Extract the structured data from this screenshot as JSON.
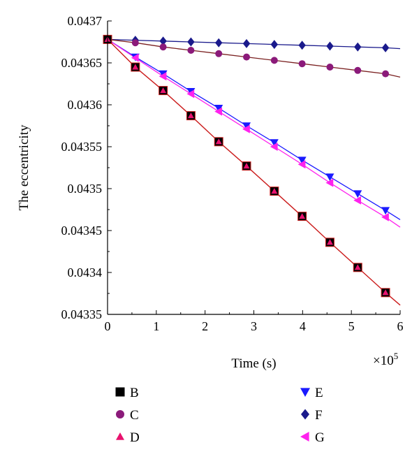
{
  "chart_data": {
    "type": "line",
    "xlabel": "Time (s)",
    "ylabel": "The eccentricity",
    "x_multiplier": "×10",
    "x_multiplier_exp": "5",
    "xlim": [
      0,
      6
    ],
    "ylim": [
      0.04335,
      0.0437
    ],
    "x_ticks": [
      "0",
      "1",
      "2",
      "3",
      "4",
      "5",
      "6"
    ],
    "y_ticks": [
      "0.04335",
      "0.0434",
      "0.04345",
      "0.0435",
      "0.04355",
      "0.0436",
      "0.04365",
      "0.0437"
    ],
    "grid": false,
    "legend_position": "bottom",
    "series": [
      {
        "name": "B",
        "marker": "square",
        "color": "#000000",
        "line_color": "#cc2020",
        "x": [
          0,
          0.57,
          1.14,
          1.71,
          2.28,
          2.85,
          3.42,
          3.99,
          4.56,
          5.13,
          5.7
        ],
        "y": [
          0.043678,
          0.043645,
          0.043617,
          0.043587,
          0.043556,
          0.043527,
          0.043497,
          0.043467,
          0.043436,
          0.043406,
          0.043376
        ],
        "line_end": [
          6.0,
          0.043361
        ]
      },
      {
        "name": "C",
        "marker": "circle",
        "color": "#8b1a7a",
        "line_color": "#7a2020",
        "x": [
          0,
          0.57,
          1.14,
          1.71,
          2.28,
          2.85,
          3.42,
          3.99,
          4.56,
          5.13,
          5.7
        ],
        "y": [
          0.043678,
          0.043674,
          0.043669,
          0.043665,
          0.043661,
          0.043657,
          0.043653,
          0.043649,
          0.043645,
          0.043641,
          0.043637
        ],
        "line_end": [
          6.0,
          0.043633
        ]
      },
      {
        "name": "D",
        "marker": "triangle-up",
        "color": "#e8126e",
        "line_color": "#cc2020",
        "x": [
          0,
          0.57,
          1.14,
          1.71,
          2.28,
          2.85,
          3.42,
          3.99,
          4.56,
          5.13,
          5.7
        ],
        "y": [
          0.043678,
          0.043645,
          0.043617,
          0.043587,
          0.043556,
          0.043527,
          0.043497,
          0.043467,
          0.043436,
          0.043406,
          0.043376
        ],
        "line_end": [
          6.0,
          0.043361
        ]
      },
      {
        "name": "E",
        "marker": "triangle-down",
        "color": "#1a1aff",
        "line_color": "#1a1aff",
        "x": [
          0,
          0.57,
          1.14,
          1.71,
          2.28,
          2.85,
          3.42,
          3.99,
          4.56,
          5.13,
          5.7
        ],
        "y": [
          0.043678,
          0.043657,
          0.043637,
          0.043616,
          0.043596,
          0.043575,
          0.043555,
          0.043534,
          0.043514,
          0.043494,
          0.043474
        ],
        "line_end": [
          6.0,
          0.043463
        ]
      },
      {
        "name": "F",
        "marker": "diamond",
        "color": "#1a1a8c",
        "line_color": "#1a1a8c",
        "x": [
          0,
          0.57,
          1.14,
          1.71,
          2.28,
          2.85,
          3.42,
          3.99,
          4.56,
          5.13,
          5.7
        ],
        "y": [
          0.043678,
          0.043677,
          0.043676,
          0.043675,
          0.043674,
          0.043673,
          0.043672,
          0.043671,
          0.04367,
          0.043669,
          0.043668
        ],
        "line_end": [
          6.0,
          0.043667
        ]
      },
      {
        "name": "G",
        "marker": "triangle-left",
        "color": "#ff22ee",
        "line_color": "#ff22ee",
        "x": [
          0,
          0.57,
          1.14,
          1.71,
          2.28,
          2.85,
          3.42,
          3.99,
          4.56,
          5.13,
          5.7
        ],
        "y": [
          0.043678,
          0.043656,
          0.043634,
          0.043613,
          0.043592,
          0.043571,
          0.04355,
          0.043529,
          0.043507,
          0.043486,
          0.043466
        ],
        "line_end": [
          6.0,
          0.043454
        ]
      }
    ]
  }
}
